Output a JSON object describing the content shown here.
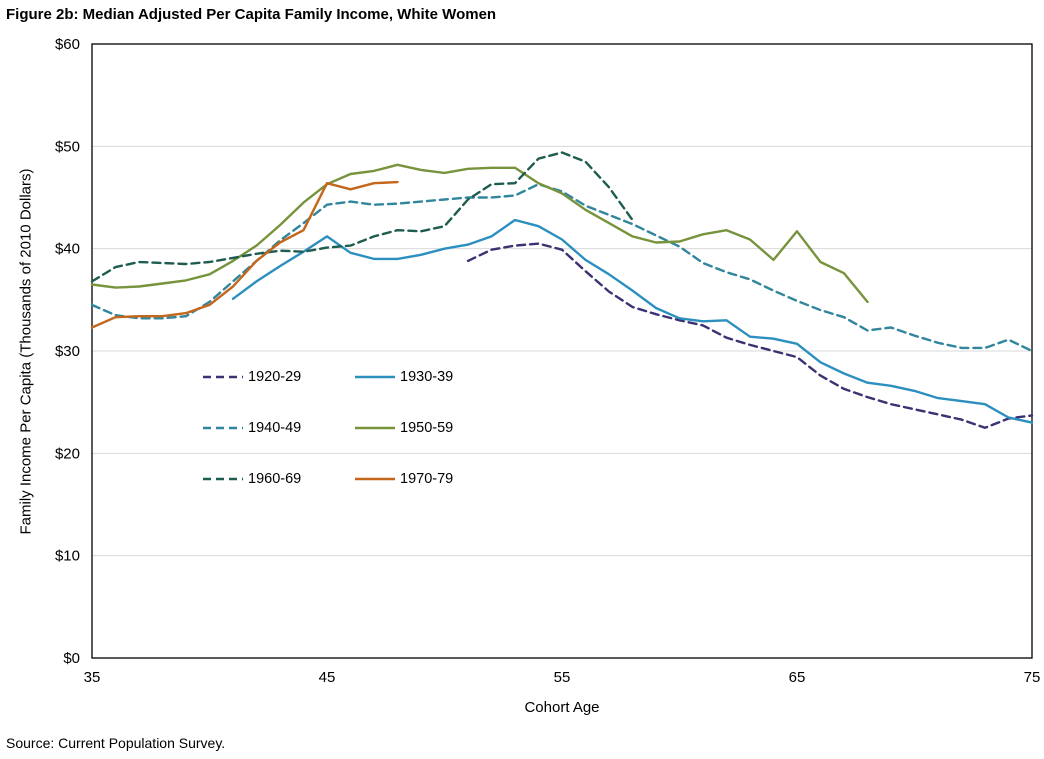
{
  "title": "Figure 2b: Median Adjusted Per Capita Family Income, White Women",
  "source": "Source: Current Population Survey.",
  "chart_data": {
    "type": "line",
    "title": "Figure 2b: Median Adjusted Per Capita Family Income, White Women",
    "xlabel": "Cohort Age",
    "ylabel": "Family Income Per Capita (Thousands of 2010 Dollars)",
    "xlim": [
      35,
      75
    ],
    "ylim": [
      0,
      60
    ],
    "x_ticks": [
      35,
      45,
      55,
      65,
      75
    ],
    "y_ticks": [
      {
        "value": 0,
        "label": "$0"
      },
      {
        "value": 10,
        "label": "$10"
      },
      {
        "value": 20,
        "label": "$20"
      },
      {
        "value": 30,
        "label": "$30"
      },
      {
        "value": 40,
        "label": "$40"
      },
      {
        "value": 50,
        "label": "$50"
      },
      {
        "value": 60,
        "label": "$60"
      }
    ],
    "grid": "horizontal",
    "grid_color": "#D9D9D9",
    "border_color": "#000000",
    "legend_position": "inside-left",
    "series": [
      {
        "name": "1920-29",
        "color": "#3B3173",
        "dashed": true,
        "points": [
          [
            51,
            38.8
          ],
          [
            52,
            39.9
          ],
          [
            53,
            40.3
          ],
          [
            54,
            40.5
          ],
          [
            55,
            39.9
          ],
          [
            56,
            37.8
          ],
          [
            57,
            35.8
          ],
          [
            58,
            34.3
          ],
          [
            59,
            33.6
          ],
          [
            60,
            33.0
          ],
          [
            61,
            32.5
          ],
          [
            62,
            31.3
          ],
          [
            63,
            30.6
          ],
          [
            64,
            30.0
          ],
          [
            65,
            29.4
          ],
          [
            66,
            27.6
          ],
          [
            67,
            26.3
          ],
          [
            68,
            25.5
          ],
          [
            69,
            24.8
          ],
          [
            70,
            24.3
          ],
          [
            71,
            23.8
          ],
          [
            72,
            23.3
          ],
          [
            73,
            22.5
          ],
          [
            74,
            23.4
          ],
          [
            75,
            23.7
          ]
        ]
      },
      {
        "name": "1930-39",
        "color": "#2B8FC0",
        "dashed": false,
        "points": [
          [
            41,
            35.1
          ],
          [
            42,
            36.8
          ],
          [
            43,
            38.3
          ],
          [
            44,
            39.7
          ],
          [
            45,
            41.2
          ],
          [
            46,
            39.6
          ],
          [
            47,
            39.0
          ],
          [
            48,
            39.0
          ],
          [
            49,
            39.4
          ],
          [
            50,
            40.0
          ],
          [
            51,
            40.4
          ],
          [
            52,
            41.2
          ],
          [
            53,
            42.8
          ],
          [
            54,
            42.2
          ],
          [
            55,
            40.9
          ],
          [
            56,
            38.9
          ],
          [
            57,
            37.5
          ],
          [
            58,
            35.9
          ],
          [
            59,
            34.2
          ],
          [
            60,
            33.2
          ],
          [
            61,
            32.9
          ],
          [
            62,
            33.0
          ],
          [
            63,
            31.4
          ],
          [
            64,
            31.2
          ],
          [
            65,
            30.7
          ],
          [
            66,
            28.9
          ],
          [
            67,
            27.8
          ],
          [
            68,
            26.9
          ],
          [
            69,
            26.6
          ],
          [
            70,
            26.1
          ],
          [
            71,
            25.4
          ],
          [
            72,
            25.1
          ],
          [
            73,
            24.8
          ],
          [
            74,
            23.5
          ],
          [
            75,
            23.0
          ]
        ]
      },
      {
        "name": "1940-49",
        "color": "#31859C",
        "dashed": true,
        "points": [
          [
            35,
            34.5
          ],
          [
            36,
            33.5
          ],
          [
            37,
            33.2
          ],
          [
            38,
            33.2
          ],
          [
            39,
            33.4
          ],
          [
            40,
            34.8
          ],
          [
            41,
            36.8
          ],
          [
            42,
            38.8
          ],
          [
            43,
            40.8
          ],
          [
            44,
            42.5
          ],
          [
            45,
            44.3
          ],
          [
            46,
            44.6
          ],
          [
            47,
            44.3
          ],
          [
            48,
            44.4
          ],
          [
            49,
            44.6
          ],
          [
            50,
            44.8
          ],
          [
            51,
            45.0
          ],
          [
            52,
            45.0
          ],
          [
            53,
            45.2
          ],
          [
            54,
            46.3
          ],
          [
            55,
            45.6
          ],
          [
            56,
            44.2
          ],
          [
            57,
            43.3
          ],
          [
            58,
            42.4
          ],
          [
            59,
            41.3
          ],
          [
            60,
            40.2
          ],
          [
            61,
            38.6
          ],
          [
            62,
            37.7
          ],
          [
            63,
            37.0
          ],
          [
            64,
            35.9
          ],
          [
            65,
            34.9
          ],
          [
            66,
            34.0
          ],
          [
            67,
            33.3
          ],
          [
            68,
            32.0
          ],
          [
            69,
            32.3
          ],
          [
            70,
            31.5
          ],
          [
            71,
            30.8
          ],
          [
            72,
            30.3
          ],
          [
            73,
            30.3
          ],
          [
            74,
            31.1
          ],
          [
            75,
            30.0
          ]
        ]
      },
      {
        "name": "1950-59",
        "color": "#77933C",
        "dashed": false,
        "points": [
          [
            35,
            36.5
          ],
          [
            36,
            36.2
          ],
          [
            37,
            36.3
          ],
          [
            38,
            36.6
          ],
          [
            39,
            36.9
          ],
          [
            40,
            37.5
          ],
          [
            41,
            38.8
          ],
          [
            42,
            40.3
          ],
          [
            43,
            42.3
          ],
          [
            44,
            44.5
          ],
          [
            45,
            46.3
          ],
          [
            46,
            47.3
          ],
          [
            47,
            47.6
          ],
          [
            48,
            48.2
          ],
          [
            49,
            47.7
          ],
          [
            50,
            47.4
          ],
          [
            51,
            47.8
          ],
          [
            52,
            47.9
          ],
          [
            53,
            47.9
          ],
          [
            54,
            46.4
          ],
          [
            55,
            45.4
          ],
          [
            56,
            43.8
          ],
          [
            57,
            42.5
          ],
          [
            58,
            41.2
          ],
          [
            59,
            40.6
          ],
          [
            60,
            40.7
          ],
          [
            61,
            41.4
          ],
          [
            62,
            41.8
          ],
          [
            63,
            40.9
          ],
          [
            64,
            38.9
          ],
          [
            65,
            41.7
          ],
          [
            66,
            38.7
          ],
          [
            67,
            37.6
          ],
          [
            68,
            34.8
          ]
        ]
      },
      {
        "name": "1960-69",
        "color": "#1E5C50",
        "dashed": true,
        "points": [
          [
            35,
            36.8
          ],
          [
            36,
            38.2
          ],
          [
            37,
            38.7
          ],
          [
            38,
            38.6
          ],
          [
            39,
            38.5
          ],
          [
            40,
            38.7
          ],
          [
            41,
            39.1
          ],
          [
            42,
            39.5
          ],
          [
            43,
            39.8
          ],
          [
            44,
            39.7
          ],
          [
            45,
            40.1
          ],
          [
            46,
            40.3
          ],
          [
            47,
            41.2
          ],
          [
            48,
            41.8
          ],
          [
            49,
            41.7
          ],
          [
            50,
            42.2
          ],
          [
            51,
            44.8
          ],
          [
            52,
            46.3
          ],
          [
            53,
            46.4
          ],
          [
            54,
            48.8
          ],
          [
            55,
            49.4
          ],
          [
            56,
            48.5
          ],
          [
            57,
            46.0
          ],
          [
            58,
            42.8
          ]
        ]
      },
      {
        "name": "1970-79",
        "color": "#C4661B",
        "dashed": false,
        "points": [
          [
            35,
            32.3
          ],
          [
            36,
            33.3
          ],
          [
            37,
            33.4
          ],
          [
            38,
            33.4
          ],
          [
            39,
            33.7
          ],
          [
            40,
            34.5
          ],
          [
            41,
            36.3
          ],
          [
            42,
            38.8
          ],
          [
            43,
            40.6
          ],
          [
            44,
            41.8
          ],
          [
            45,
            46.4
          ],
          [
            46,
            45.8
          ],
          [
            47,
            46.4
          ],
          [
            48,
            46.5
          ]
        ]
      }
    ],
    "legend_rows": [
      [
        "1920-29",
        "1930-39"
      ],
      [
        "1940-49",
        "1950-59"
      ],
      [
        "1960-69",
        "1970-79"
      ]
    ]
  }
}
